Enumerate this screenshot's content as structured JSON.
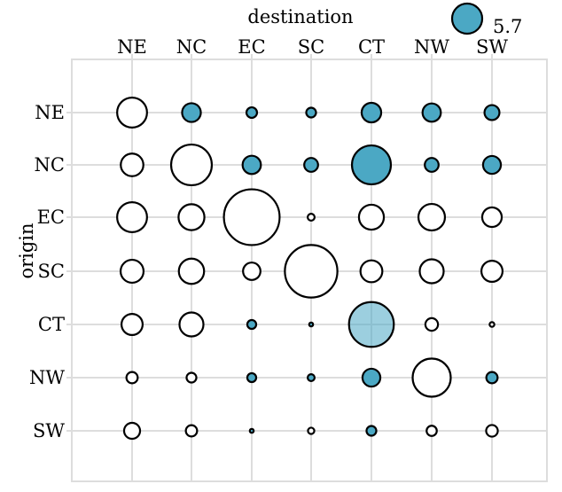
{
  "chart_data": {
    "type": "scatter",
    "subtype": "bubble-matrix",
    "title": "",
    "xlabel": "destination",
    "ylabel": "origin",
    "x_categories": [
      "NE",
      "NC",
      "EC",
      "SC",
      "CT",
      "NW",
      "SW"
    ],
    "y_categories": [
      "NE",
      "NC",
      "EC",
      "SC",
      "CT",
      "NW",
      "SW"
    ],
    "grid": true,
    "legend": {
      "position": "top-right",
      "label": "5.7",
      "value": 5.7,
      "color": "#4BA8C4"
    },
    "colors": {
      "highlight": "#4BA8C4",
      "highlight_light": "#9CD0DE",
      "plain": "#FFFFFF",
      "stroke": "#000000",
      "grid": "#DDDDDD",
      "panel_border": "#DDDDDD"
    },
    "points": [
      {
        "origin": "NE",
        "destination": "NE",
        "value": 5.6,
        "highlight": false
      },
      {
        "origin": "NE",
        "destination": "NC",
        "value": 2.2,
        "highlight": true
      },
      {
        "origin": "NE",
        "destination": "EC",
        "value": 0.7,
        "highlight": true
      },
      {
        "origin": "NE",
        "destination": "SC",
        "value": 0.6,
        "highlight": true
      },
      {
        "origin": "NE",
        "destination": "CT",
        "value": 2.4,
        "highlight": true
      },
      {
        "origin": "NE",
        "destination": "NW",
        "value": 2.1,
        "highlight": true
      },
      {
        "origin": "NE",
        "destination": "SW",
        "value": 1.4,
        "highlight": true
      },
      {
        "origin": "NC",
        "destination": "NE",
        "value": 3.2,
        "highlight": false
      },
      {
        "origin": "NC",
        "destination": "NC",
        "value": 10.4,
        "highlight": false
      },
      {
        "origin": "NC",
        "destination": "EC",
        "value": 2.1,
        "highlight": true
      },
      {
        "origin": "NC",
        "destination": "SC",
        "value": 1.2,
        "highlight": true
      },
      {
        "origin": "NC",
        "destination": "CT",
        "value": 9.5,
        "highlight": true
      },
      {
        "origin": "NC",
        "destination": "NW",
        "value": 1.2,
        "highlight": true
      },
      {
        "origin": "NC",
        "destination": "SW",
        "value": 2.0,
        "highlight": true
      },
      {
        "origin": "EC",
        "destination": "NE",
        "value": 5.6,
        "highlight": false
      },
      {
        "origin": "EC",
        "destination": "NC",
        "value": 4.2,
        "highlight": false
      },
      {
        "origin": "EC",
        "destination": "EC",
        "value": 19.5,
        "highlight": false
      },
      {
        "origin": "EC",
        "destination": "SC",
        "value": 0.3,
        "highlight": false
      },
      {
        "origin": "EC",
        "destination": "CT",
        "value": 3.9,
        "highlight": false
      },
      {
        "origin": "EC",
        "destination": "NW",
        "value": 4.4,
        "highlight": false
      },
      {
        "origin": "EC",
        "destination": "SW",
        "value": 2.4,
        "highlight": false
      },
      {
        "origin": "SC",
        "destination": "NE",
        "value": 3.3,
        "highlight": false
      },
      {
        "origin": "SC",
        "destination": "NC",
        "value": 4.0,
        "highlight": false
      },
      {
        "origin": "SC",
        "destination": "EC",
        "value": 1.9,
        "highlight": false
      },
      {
        "origin": "SC",
        "destination": "SC",
        "value": 17.3,
        "highlight": false
      },
      {
        "origin": "SC",
        "destination": "CT",
        "value": 3.0,
        "highlight": false
      },
      {
        "origin": "SC",
        "destination": "NW",
        "value": 3.6,
        "highlight": false
      },
      {
        "origin": "SC",
        "destination": "SW",
        "value": 2.8,
        "highlight": false
      },
      {
        "origin": "CT",
        "destination": "NE",
        "value": 2.8,
        "highlight": false
      },
      {
        "origin": "CT",
        "destination": "NC",
        "value": 3.6,
        "highlight": false
      },
      {
        "origin": "CT",
        "destination": "EC",
        "value": 0.5,
        "highlight": true
      },
      {
        "origin": "CT",
        "destination": "SC",
        "value": 0.08,
        "highlight": true
      },
      {
        "origin": "CT",
        "destination": "CT",
        "value": 12.6,
        "highlight": true,
        "translucent": true
      },
      {
        "origin": "CT",
        "destination": "NW",
        "value": 1.0,
        "highlight": false
      },
      {
        "origin": "CT",
        "destination": "SW",
        "value": 0.14,
        "highlight": false
      },
      {
        "origin": "NW",
        "destination": "NE",
        "value": 0.8,
        "highlight": false
      },
      {
        "origin": "NW",
        "destination": "NC",
        "value": 0.6,
        "highlight": false
      },
      {
        "origin": "NW",
        "destination": "EC",
        "value": 0.5,
        "highlight": true
      },
      {
        "origin": "NW",
        "destination": "SC",
        "value": 0.3,
        "highlight": true
      },
      {
        "origin": "NW",
        "destination": "CT",
        "value": 2.0,
        "highlight": true
      },
      {
        "origin": "NW",
        "destination": "NW",
        "value": 9.1,
        "highlight": false
      },
      {
        "origin": "NW",
        "destination": "SW",
        "value": 0.8,
        "highlight": true
      },
      {
        "origin": "SW",
        "destination": "NE",
        "value": 1.6,
        "highlight": false
      },
      {
        "origin": "SW",
        "destination": "NC",
        "value": 0.8,
        "highlight": false
      },
      {
        "origin": "SW",
        "destination": "EC",
        "value": 0.07,
        "highlight": true
      },
      {
        "origin": "SW",
        "destination": "SC",
        "value": 0.25,
        "highlight": false
      },
      {
        "origin": "SW",
        "destination": "CT",
        "value": 0.6,
        "highlight": true
      },
      {
        "origin": "SW",
        "destination": "NW",
        "value": 0.65,
        "highlight": false
      },
      {
        "origin": "SW",
        "destination": "SW",
        "value": 0.85,
        "highlight": false
      }
    ]
  }
}
